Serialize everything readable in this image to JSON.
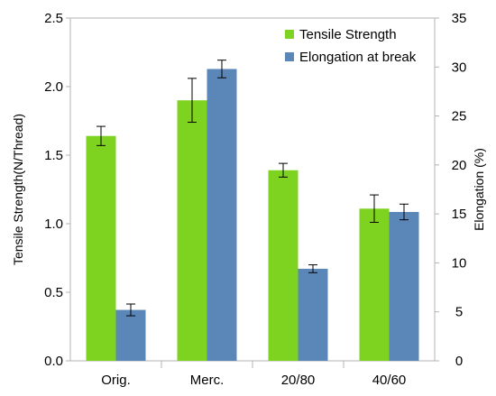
{
  "chart_data": {
    "type": "bar",
    "categories": [
      "Orig.",
      "Merc.",
      "20/80",
      "40/60"
    ],
    "series": [
      {
        "name": "Tensile Strength",
        "axis": "left",
        "color": "#7ed321",
        "values": [
          1.64,
          1.9,
          1.39,
          1.11
        ],
        "errors": [
          0.07,
          0.16,
          0.05,
          0.1
        ]
      },
      {
        "name": "Elongation at break",
        "axis": "right",
        "color": "#5b86b8",
        "values": [
          5.2,
          29.8,
          9.4,
          15.2
        ],
        "errors": [
          0.6,
          0.9,
          0.4,
          0.8
        ]
      }
    ],
    "ylabel": "Tensile Strength(N/Thread)",
    "y2label": "Elongation (%)",
    "ylim": [
      0,
      2.5
    ],
    "y2lim": [
      0,
      35
    ],
    "yticks": [
      "0.0",
      "0.5",
      "1.0",
      "1.5",
      "2.0",
      "2.5"
    ],
    "y2ticks": [
      "0",
      "5",
      "10",
      "15",
      "20",
      "25",
      "30",
      "35"
    ],
    "grid": false,
    "legend": "top-right"
  }
}
